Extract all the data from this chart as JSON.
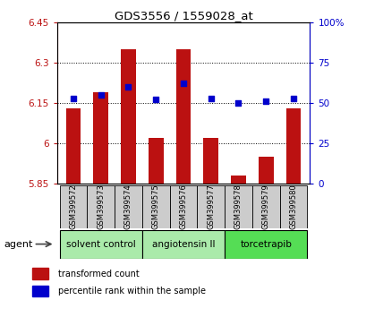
{
  "title": "GDS3556 / 1559028_at",
  "samples": [
    "GSM399572",
    "GSM399573",
    "GSM399574",
    "GSM399575",
    "GSM399576",
    "GSM399577",
    "GSM399578",
    "GSM399579",
    "GSM399580"
  ],
  "bar_values": [
    6.13,
    6.19,
    6.35,
    6.02,
    6.35,
    6.02,
    5.88,
    5.95,
    6.13
  ],
  "dot_values": [
    53,
    55,
    60,
    52,
    62,
    53,
    50,
    51,
    53
  ],
  "groups": [
    {
      "label": "solvent control",
      "start": 0,
      "end": 3,
      "color": "#aaeaaa"
    },
    {
      "label": "angiotensin II",
      "start": 3,
      "end": 6,
      "color": "#aaeaaa"
    },
    {
      "label": "torcetrapib",
      "start": 6,
      "end": 9,
      "color": "#55dd55"
    }
  ],
  "ylim_left": [
    5.85,
    6.45
  ],
  "ylim_right": [
    0,
    100
  ],
  "yticks_left": [
    5.85,
    6.0,
    6.15,
    6.3,
    6.45
  ],
  "yticks_right": [
    0,
    25,
    50,
    75,
    100
  ],
  "ytick_labels_left": [
    "5.85",
    "6",
    "6.15",
    "6.3",
    "6.45"
  ],
  "ytick_labels_right": [
    "0",
    "25",
    "50",
    "75",
    "100%"
  ],
  "bar_color": "#bb1111",
  "dot_color": "#0000cc",
  "bar_width": 0.55,
  "agent_label": "agent",
  "legend_bar_label": "transformed count",
  "legend_dot_label": "percentile rank within the sample"
}
